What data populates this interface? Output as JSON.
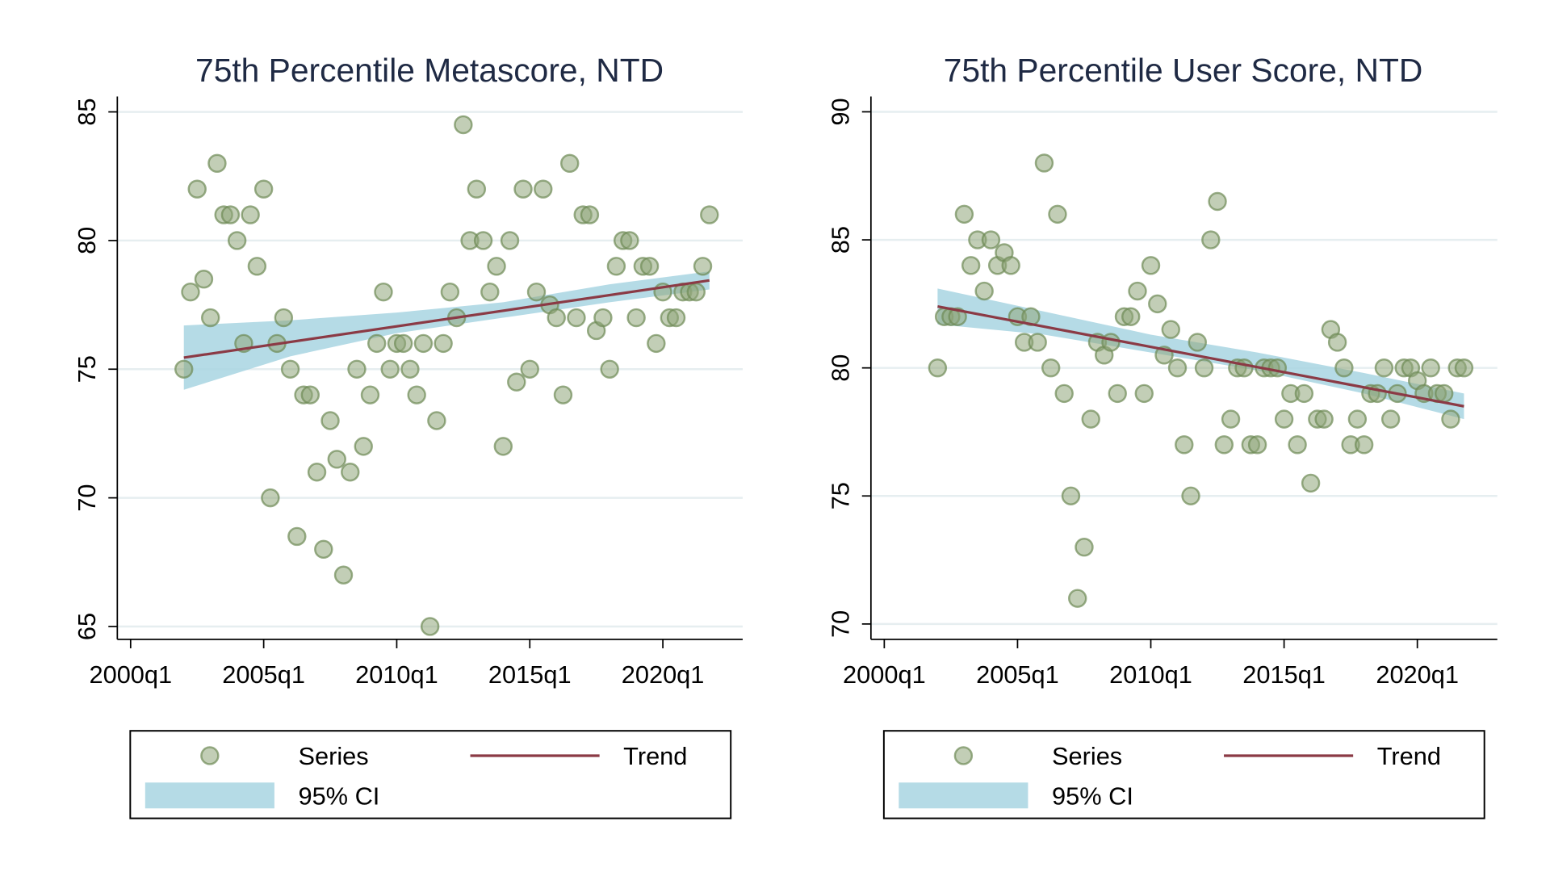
{
  "chart_data": [
    {
      "type": "scatter",
      "title": "75th Percentile Metascore, NTD",
      "xlabel": "",
      "ylabel": "",
      "x_ticks": [
        "2000q1",
        "2005q1",
        "2010q1",
        "2015q1",
        "2020q1"
      ],
      "x_tick_values": [
        2000,
        2005,
        2010,
        2015,
        2020
      ],
      "xlim": [
        1999.5,
        2023
      ],
      "y_ticks": [
        "65",
        "70",
        "75",
        "80",
        "85"
      ],
      "y_tick_values": [
        65,
        70,
        75,
        80,
        85
      ],
      "ylim": [
        64.5,
        85.6
      ],
      "grid": true,
      "legend_position": "bottom",
      "colors": {
        "series": "#90a67a",
        "series_edge": "#6e8a55",
        "trend": "#8b3a45",
        "ci": "#a8d5e2"
      },
      "series": {
        "name": "Series",
        "points": [
          [
            2002.0,
            75
          ],
          [
            2002.25,
            78
          ],
          [
            2002.5,
            82
          ],
          [
            2002.75,
            78.5
          ],
          [
            2003.0,
            77
          ],
          [
            2003.25,
            83
          ],
          [
            2003.5,
            81
          ],
          [
            2003.75,
            81
          ],
          [
            2004.0,
            80
          ],
          [
            2004.25,
            76
          ],
          [
            2004.5,
            81
          ],
          [
            2004.75,
            79
          ],
          [
            2005.0,
            82
          ],
          [
            2005.25,
            70
          ],
          [
            2005.5,
            76
          ],
          [
            2005.75,
            77
          ],
          [
            2006.0,
            75
          ],
          [
            2006.25,
            68.5
          ],
          [
            2006.5,
            74
          ],
          [
            2006.75,
            74
          ],
          [
            2007.0,
            71
          ],
          [
            2007.25,
            68
          ],
          [
            2007.5,
            73
          ],
          [
            2007.75,
            71.5
          ],
          [
            2008.0,
            67
          ],
          [
            2008.25,
            71
          ],
          [
            2008.5,
            75
          ],
          [
            2008.75,
            72
          ],
          [
            2009.0,
            74
          ],
          [
            2009.25,
            76
          ],
          [
            2009.5,
            78
          ],
          [
            2009.75,
            75
          ],
          [
            2010.0,
            76
          ],
          [
            2010.25,
            76
          ],
          [
            2010.5,
            75
          ],
          [
            2010.75,
            74
          ],
          [
            2011.0,
            76
          ],
          [
            2011.25,
            65
          ],
          [
            2011.5,
            73
          ],
          [
            2011.75,
            76
          ],
          [
            2012.0,
            78
          ],
          [
            2012.25,
            77
          ],
          [
            2012.5,
            84.5
          ],
          [
            2012.75,
            80
          ],
          [
            2013.0,
            82
          ],
          [
            2013.25,
            80
          ],
          [
            2013.5,
            78
          ],
          [
            2013.75,
            79
          ],
          [
            2014.0,
            72
          ],
          [
            2014.25,
            80
          ],
          [
            2014.5,
            74.5
          ],
          [
            2014.75,
            82
          ],
          [
            2015.0,
            75
          ],
          [
            2015.25,
            78
          ],
          [
            2015.5,
            82
          ],
          [
            2015.75,
            77.5
          ],
          [
            2016.0,
            77
          ],
          [
            2016.25,
            74
          ],
          [
            2016.5,
            83
          ],
          [
            2016.75,
            77
          ],
          [
            2017.0,
            81
          ],
          [
            2017.25,
            81
          ],
          [
            2017.5,
            76.5
          ],
          [
            2017.75,
            77
          ],
          [
            2018.0,
            75
          ],
          [
            2018.25,
            79
          ],
          [
            2018.5,
            80
          ],
          [
            2018.75,
            80
          ],
          [
            2019.0,
            77
          ],
          [
            2019.25,
            79
          ],
          [
            2019.5,
            79
          ],
          [
            2019.75,
            76
          ],
          [
            2020.0,
            78
          ],
          [
            2020.25,
            77
          ],
          [
            2020.5,
            77
          ],
          [
            2020.75,
            78
          ],
          [
            2021.0,
            78
          ],
          [
            2021.25,
            78
          ],
          [
            2021.5,
            79
          ],
          [
            2021.75,
            81
          ]
        ]
      },
      "trend": {
        "name": "Trend",
        "x": [
          2002.0,
          2021.75
        ],
        "y": [
          75.45,
          78.45
        ]
      },
      "ci": {
        "name": "95% CI",
        "x": [
          2002.0,
          2006.0,
          2010.0,
          2014.0,
          2018.0,
          2021.75
        ],
        "lower": [
          74.2,
          75.5,
          76.4,
          77.0,
          77.6,
          78.1
        ],
        "upper": [
          76.7,
          76.9,
          77.2,
          77.6,
          78.3,
          78.8
        ]
      },
      "legend": {
        "series_label": "Series",
        "trend_label": "Trend",
        "ci_label": "95% CI"
      }
    },
    {
      "type": "scatter",
      "title": "75th Percentile User Score, NTD",
      "xlabel": "",
      "ylabel": "",
      "x_ticks": [
        "2000q1",
        "2005q1",
        "2010q1",
        "2015q1",
        "2020q1"
      ],
      "x_tick_values": [
        2000,
        2005,
        2010,
        2015,
        2020
      ],
      "xlim": [
        1999.5,
        2023
      ],
      "y_ticks": [
        "70",
        "75",
        "80",
        "85",
        "90"
      ],
      "y_tick_values": [
        70,
        75,
        80,
        85,
        90
      ],
      "ylim": [
        69.4,
        90.6
      ],
      "grid": true,
      "legend_position": "bottom",
      "colors": {
        "series": "#90a67a",
        "series_edge": "#6e8a55",
        "trend": "#8b3a45",
        "ci": "#a8d5e2"
      },
      "series": {
        "name": "Series",
        "points": [
          [
            2002.0,
            80
          ],
          [
            2002.25,
            82
          ],
          [
            2002.5,
            82
          ],
          [
            2002.75,
            82
          ],
          [
            2003.0,
            86
          ],
          [
            2003.25,
            84
          ],
          [
            2003.5,
            85
          ],
          [
            2003.75,
            83
          ],
          [
            2004.0,
            85
          ],
          [
            2004.25,
            84
          ],
          [
            2004.5,
            84.5
          ],
          [
            2004.75,
            84
          ],
          [
            2005.0,
            82
          ],
          [
            2005.25,
            81
          ],
          [
            2005.5,
            82
          ],
          [
            2005.75,
            81
          ],
          [
            2006.0,
            88
          ],
          [
            2006.25,
            80
          ],
          [
            2006.5,
            86
          ],
          [
            2006.75,
            79
          ],
          [
            2007.0,
            75
          ],
          [
            2007.25,
            71
          ],
          [
            2007.5,
            73
          ],
          [
            2007.75,
            78
          ],
          [
            2008.0,
            81
          ],
          [
            2008.25,
            80.5
          ],
          [
            2008.5,
            81
          ],
          [
            2008.75,
            79
          ],
          [
            2009.0,
            82
          ],
          [
            2009.25,
            82
          ],
          [
            2009.5,
            83
          ],
          [
            2009.75,
            79
          ],
          [
            2010.0,
            84
          ],
          [
            2010.25,
            82.5
          ],
          [
            2010.5,
            80.5
          ],
          [
            2010.75,
            81.5
          ],
          [
            2011.0,
            80
          ],
          [
            2011.25,
            77
          ],
          [
            2011.5,
            75
          ],
          [
            2011.75,
            81
          ],
          [
            2012.0,
            80
          ],
          [
            2012.25,
            85
          ],
          [
            2012.5,
            86.5
          ],
          [
            2012.75,
            77
          ],
          [
            2013.0,
            78
          ],
          [
            2013.25,
            80
          ],
          [
            2013.5,
            80
          ],
          [
            2013.75,
            77
          ],
          [
            2014.0,
            77
          ],
          [
            2014.25,
            80
          ],
          [
            2014.5,
            80
          ],
          [
            2014.75,
            80
          ],
          [
            2015.0,
            78
          ],
          [
            2015.25,
            79
          ],
          [
            2015.5,
            77
          ],
          [
            2015.75,
            79
          ],
          [
            2016.0,
            75.5
          ],
          [
            2016.25,
            78
          ],
          [
            2016.5,
            78
          ],
          [
            2016.75,
            81.5
          ],
          [
            2017.0,
            81
          ],
          [
            2017.25,
            80
          ],
          [
            2017.5,
            77
          ],
          [
            2017.75,
            78
          ],
          [
            2018.0,
            77
          ],
          [
            2018.25,
            79
          ],
          [
            2018.5,
            79
          ],
          [
            2018.75,
            80
          ],
          [
            2019.0,
            78
          ],
          [
            2019.25,
            79
          ],
          [
            2019.5,
            80
          ],
          [
            2019.75,
            80
          ],
          [
            2020.0,
            79.5
          ],
          [
            2020.25,
            79
          ],
          [
            2020.5,
            80
          ],
          [
            2020.75,
            79
          ],
          [
            2021.0,
            79
          ],
          [
            2021.25,
            78
          ],
          [
            2021.5,
            80
          ],
          [
            2021.75,
            80
          ]
        ]
      },
      "trend": {
        "name": "Trend",
        "x": [
          2002.0,
          2021.75
        ],
        "y": [
          82.4,
          78.5
        ]
      },
      "ci": {
        "name": "95% CI",
        "x": [
          2002.0,
          2006.0,
          2010.0,
          2014.0,
          2018.0,
          2021.75
        ],
        "lower": [
          81.7,
          81.3,
          80.6,
          79.9,
          79.0,
          78.0
        ],
        "upper": [
          83.1,
          82.2,
          81.3,
          80.6,
          79.8,
          79.0
        ]
      },
      "legend": {
        "series_label": "Series",
        "trend_label": "Trend",
        "ci_label": "95% CI"
      }
    }
  ]
}
